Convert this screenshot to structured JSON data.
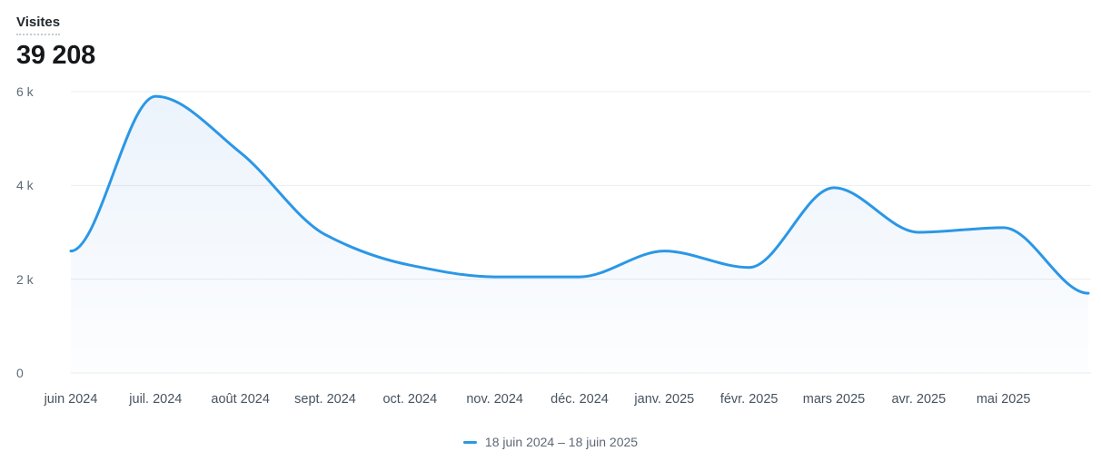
{
  "widget": {
    "metric_label": "Visites",
    "metric_value": "39 208"
  },
  "legend": {
    "items": [
      {
        "label": "18 juin 2024 – 18 juin 2025",
        "color": "#2b97e6"
      }
    ]
  },
  "colors": {
    "line": "#2b97e6",
    "grid": "#ebedf0",
    "area_fill_top": "rgba(59,134,222,0.10)",
    "area_fill_bottom": "rgba(59,134,222,0.01)",
    "y_label": "#5d6b77",
    "x_label": "#47535e",
    "legend_text": "#5e6876"
  },
  "chart_data": {
    "type": "area",
    "title": "Visites",
    "total": 39208,
    "x_tick_labels": [
      "juin 2024",
      "juil. 2024",
      "août 2024",
      "sept. 2024",
      "oct. 2024",
      "nov. 2024",
      "déc. 2024",
      "janv. 2025",
      "févr. 2025",
      "mars 2025",
      "avr. 2025",
      "mai 2025"
    ],
    "series": [
      {
        "name": "18 juin 2024 – 18 juin 2025",
        "color": "#2b97e6",
        "values": [
          2600,
          5900,
          4700,
          2950,
          2300,
          2050,
          2050,
          2600,
          2250,
          3950,
          3000,
          3100,
          1700
        ]
      }
    ],
    "ylim": [
      0,
      6000
    ],
    "yticks": [
      {
        "value": 0,
        "label": "0"
      },
      {
        "value": 2000,
        "label": "2 k"
      },
      {
        "value": 4000,
        "label": "4 k"
      },
      {
        "value": 6000,
        "label": "6 k"
      }
    ],
    "grid": true,
    "legend_position": "bottom",
    "xlabel": "",
    "ylabel": ""
  }
}
